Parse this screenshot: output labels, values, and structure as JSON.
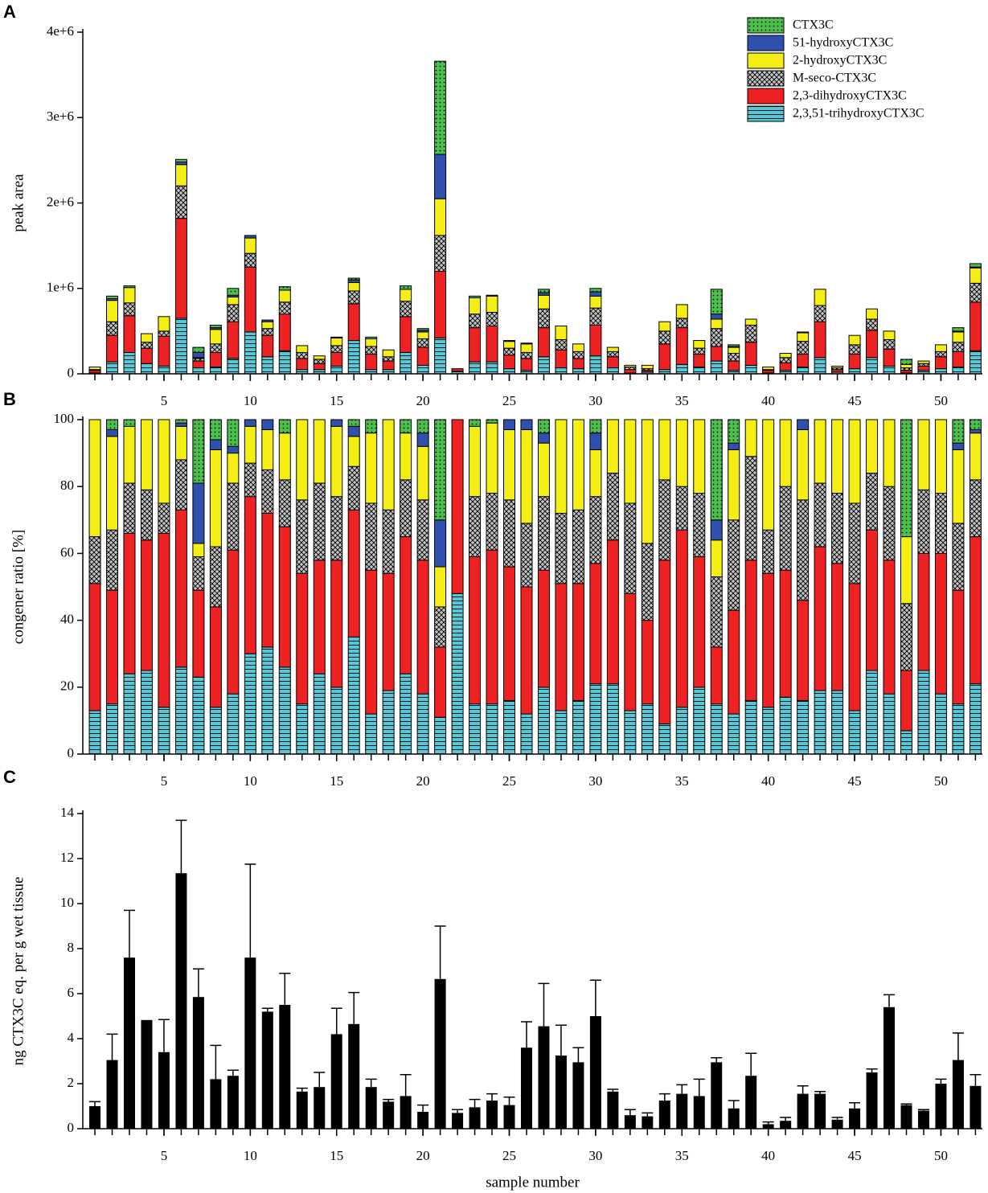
{
  "chart_data": [
    {
      "type": "bar",
      "stacked": true,
      "panel": "A",
      "ylabel": "peak area",
      "legend": "upper right",
      "x": [
        1,
        2,
        3,
        4,
        5,
        6,
        7,
        8,
        9,
        10,
        11,
        12,
        13,
        14,
        15,
        16,
        17,
        18,
        19,
        20,
        21,
        22,
        23,
        24,
        25,
        26,
        27,
        28,
        29,
        30,
        31,
        32,
        33,
        34,
        35,
        36,
        37,
        38,
        39,
        40,
        41,
        42,
        43,
        44,
        45,
        46,
        47,
        48,
        49,
        50,
        51,
        52
      ],
      "xlim": [
        0.3,
        52.4
      ],
      "xticks": [
        5,
        10,
        15,
        20,
        25,
        30,
        35,
        40,
        45,
        50
      ],
      "ylim": [
        0,
        4000000
      ],
      "yticks": [
        0,
        {
          "value": 1000000,
          "label": "1e+6"
        },
        {
          "value": 2000000,
          "label": "2e+6"
        },
        {
          "value": 3000000,
          "label": "3e+6"
        },
        {
          "value": 4000000,
          "label": "4e+6"
        }
      ],
      "series": [
        {
          "name": "2,3,51-trihydroxyCTX3C",
          "color": "#55c8d8",
          "pattern": "hlines",
          "values": [
            10000,
            140000,
            250000,
            120000,
            90000,
            650000,
            70000,
            80000,
            180000,
            490000,
            200000,
            270000,
            50000,
            50000,
            90000,
            390000,
            50000,
            50000,
            250000,
            100000,
            420000,
            30000,
            140000,
            140000,
            60000,
            40000,
            200000,
            70000,
            60000,
            210000,
            70000,
            10000,
            20000,
            50000,
            110000,
            80000,
            150000,
            40000,
            100000,
            10000,
            40000,
            80000,
            190000,
            20000,
            60000,
            190000,
            90000,
            10000,
            40000,
            60000,
            80000,
            270000
          ]
        },
        {
          "name": "2,3-dihydroxyCTX3C",
          "color": "#ee2222",
          "values": [
            30000,
            310000,
            430000,
            180000,
            350000,
            1170000,
            80000,
            170000,
            430000,
            760000,
            250000,
            430000,
            130000,
            70000,
            160000,
            430000,
            180000,
            100000,
            420000,
            210000,
            780000,
            30000,
            400000,
            420000,
            160000,
            140000,
            340000,
            210000,
            120000,
            360000,
            130000,
            40000,
            20000,
            300000,
            430000,
            150000,
            170000,
            110000,
            270000,
            30000,
            90000,
            150000,
            420000,
            30000,
            170000,
            320000,
            200000,
            30000,
            50000,
            140000,
            180000,
            570000
          ]
        },
        {
          "name": "M-seco-CTX3C",
          "color": "#c4c4c4",
          "pattern": "crosshatch",
          "values": [
            10000,
            160000,
            150000,
            70000,
            60000,
            380000,
            30000,
            100000,
            200000,
            160000,
            80000,
            140000,
            70000,
            50000,
            80000,
            150000,
            90000,
            50000,
            180000,
            100000,
            420000,
            0,
            160000,
            160000,
            80000,
            70000,
            220000,
            120000,
            80000,
            200000,
            60000,
            30000,
            20000,
            150000,
            110000,
            70000,
            210000,
            90000,
            200000,
            10000,
            60000,
            150000,
            190000,
            20000,
            110000,
            130000,
            110000,
            30000,
            30000,
            60000,
            110000,
            220000
          ]
        },
        {
          "name": "2-hydroxyCTX3C",
          "color": "#f4ee14",
          "values": [
            30000,
            250000,
            180000,
            100000,
            170000,
            250000,
            10000,
            170000,
            90000,
            180000,
            80000,
            140000,
            80000,
            40000,
            90000,
            100000,
            90000,
            80000,
            140000,
            80000,
            430000,
            0,
            190000,
            190000,
            80000,
            100000,
            160000,
            160000,
            90000,
            140000,
            50000,
            20000,
            40000,
            110000,
            160000,
            90000,
            110000,
            70000,
            70000,
            30000,
            50000,
            100000,
            190000,
            20000,
            110000,
            120000,
            100000,
            40000,
            30000,
            80000,
            120000,
            180000
          ]
        },
        {
          "name": "51-hydroxyCTX3C",
          "color": "#3050b0",
          "values": [
            0,
            20000,
            0,
            0,
            0,
            30000,
            60000,
            20000,
            20000,
            30000,
            20000,
            0,
            0,
            0,
            10000,
            30000,
            0,
            0,
            0,
            20000,
            520000,
            0,
            0,
            0,
            10000,
            10000,
            30000,
            0,
            0,
            50000,
            0,
            0,
            0,
            0,
            0,
            0,
            60000,
            10000,
            0,
            0,
            0,
            10000,
            0,
            0,
            0,
            0,
            0,
            0,
            0,
            0,
            10000,
            10000
          ]
        },
        {
          "name": "CTX3C",
          "color": "#4cc04c",
          "pattern": "dots",
          "values": [
            0,
            30000,
            20000,
            0,
            0,
            30000,
            60000,
            30000,
            80000,
            0,
            0,
            40000,
            0,
            0,
            0,
            20000,
            20000,
            0,
            40000,
            20000,
            1090000,
            0,
            20000,
            10000,
            0,
            0,
            40000,
            0,
            0,
            40000,
            0,
            0,
            0,
            0,
            0,
            0,
            290000,
            20000,
            0,
            0,
            0,
            0,
            0,
            0,
            0,
            0,
            0,
            60000,
            0,
            0,
            40000,
            40000
          ]
        }
      ]
    },
    {
      "type": "bar",
      "stacked": true,
      "panel": "B",
      "ylabel": "congener ratio [%]",
      "x": [
        1,
        2,
        3,
        4,
        5,
        6,
        7,
        8,
        9,
        10,
        11,
        12,
        13,
        14,
        15,
        16,
        17,
        18,
        19,
        20,
        21,
        22,
        23,
        24,
        25,
        26,
        27,
        28,
        29,
        30,
        31,
        32,
        33,
        34,
        35,
        36,
        37,
        38,
        39,
        40,
        41,
        42,
        43,
        44,
        45,
        46,
        47,
        48,
        49,
        50,
        51,
        52
      ],
      "xlim": [
        0.3,
        52.4
      ],
      "xticks": [
        5,
        10,
        15,
        20,
        25,
        30,
        35,
        40,
        45,
        50
      ],
      "ylim": [
        0,
        100
      ],
      "yticks": [
        0,
        20,
        40,
        60,
        80,
        100
      ],
      "series": [
        {
          "name": "2,3,51-trihydroxyCTX3C",
          "color": "#55c8d8",
          "pattern": "hlines",
          "values": [
            13,
            15,
            24,
            25,
            14,
            26,
            23,
            14,
            18,
            30,
            32,
            26,
            15,
            24,
            20,
            35,
            12,
            19,
            24,
            18,
            11,
            48,
            15,
            15,
            16,
            12,
            20,
            13,
            16,
            21,
            21,
            13,
            15,
            9,
            14,
            20,
            15,
            12,
            16,
            14,
            17,
            16,
            19,
            19,
            13,
            25,
            18,
            7,
            25,
            18,
            15,
            21
          ]
        },
        {
          "name": "2,3-dihydroxyCTX3C",
          "color": "#ee2222",
          "values": [
            38,
            34,
            42,
            39,
            52,
            47,
            26,
            30,
            43,
            47,
            40,
            42,
            39,
            34,
            38,
            38,
            43,
            35,
            41,
            40,
            21,
            52,
            44,
            46,
            40,
            38,
            35,
            38,
            35,
            36,
            43,
            35,
            25,
            49,
            53,
            39,
            17,
            31,
            42,
            40,
            38,
            30,
            43,
            38,
            38,
            42,
            40,
            18,
            35,
            42,
            34,
            44
          ]
        },
        {
          "name": "M-seco-CTX3C",
          "color": "#c4c4c4",
          "pattern": "crosshatch",
          "values": [
            14,
            18,
            15,
            15,
            9,
            15,
            10,
            18,
            20,
            10,
            13,
            14,
            22,
            23,
            19,
            13,
            20,
            19,
            17,
            18,
            12,
            0,
            18,
            17,
            20,
            19,
            22,
            21,
            22,
            20,
            20,
            27,
            23,
            24,
            13,
            19,
            21,
            27,
            31,
            13,
            25,
            30,
            19,
            21,
            24,
            17,
            22,
            20,
            19,
            18,
            20,
            17
          ]
        },
        {
          "name": "2-hydroxyCTX3C",
          "color": "#f4ee14",
          "values": [
            35,
            28,
            17,
            21,
            25,
            10,
            4,
            29,
            9,
            11,
            12,
            14,
            24,
            19,
            21,
            9,
            21,
            27,
            14,
            16,
            12,
            0,
            21,
            21,
            21,
            28,
            16,
            28,
            27,
            14,
            16,
            25,
            37,
            18,
            20,
            22,
            11,
            21,
            11,
            33,
            20,
            21,
            19,
            22,
            25,
            16,
            20,
            20,
            21,
            22,
            22,
            14
          ]
        },
        {
          "name": "51-hydroxyCTX3C",
          "color": "#3050b0",
          "values": [
            0,
            2,
            0,
            0,
            0,
            1,
            18,
            3,
            2,
            2,
            3,
            0,
            0,
            0,
            2,
            3,
            0,
            0,
            0,
            4,
            14,
            0,
            0,
            0,
            3,
            3,
            3,
            0,
            0,
            5,
            0,
            0,
            0,
            0,
            0,
            0,
            6,
            2,
            0,
            0,
            0,
            3,
            0,
            0,
            0,
            0,
            0,
            0,
            0,
            0,
            2,
            1
          ]
        },
        {
          "name": "CTX3C",
          "color": "#4cc04c",
          "pattern": "dots",
          "values": [
            0,
            3,
            2,
            0,
            0,
            1,
            19,
            6,
            8,
            0,
            0,
            4,
            0,
            0,
            0,
            2,
            4,
            0,
            4,
            4,
            30,
            0,
            2,
            1,
            0,
            0,
            4,
            0,
            0,
            4,
            0,
            0,
            0,
            0,
            0,
            0,
            30,
            7,
            0,
            0,
            0,
            0,
            0,
            0,
            0,
            0,
            0,
            35,
            0,
            0,
            7,
            3
          ]
        }
      ]
    },
    {
      "type": "bar",
      "panel": "C",
      "ylabel": "ng CTX3C eq. per g wet tissue",
      "xlabel": "sample number",
      "color": "#000000",
      "x": [
        1,
        2,
        3,
        4,
        5,
        6,
        7,
        8,
        9,
        10,
        11,
        12,
        13,
        14,
        15,
        16,
        17,
        18,
        19,
        20,
        21,
        22,
        23,
        24,
        25,
        26,
        27,
        28,
        29,
        30,
        31,
        32,
        33,
        34,
        35,
        36,
        37,
        38,
        39,
        40,
        41,
        42,
        43,
        44,
        45,
        46,
        47,
        48,
        49,
        50,
        51,
        52
      ],
      "xlim": [
        0.3,
        52.4
      ],
      "xticks": [
        5,
        10,
        15,
        20,
        25,
        30,
        35,
        40,
        45,
        50
      ],
      "ylim": [
        0,
        14
      ],
      "yticks": [
        0,
        2,
        4,
        6,
        8,
        10,
        12,
        14
      ],
      "values": [
        1.0,
        3.05,
        7.6,
        4.8,
        3.4,
        11.35,
        5.85,
        2.2,
        2.35,
        7.6,
        5.2,
        5.5,
        1.65,
        1.85,
        4.2,
        4.65,
        1.85,
        1.2,
        1.45,
        0.75,
        6.65,
        0.7,
        0.95,
        1.25,
        1.05,
        3.6,
        4.55,
        3.25,
        2.95,
        5.0,
        1.65,
        0.6,
        0.55,
        1.25,
        1.55,
        1.45,
        2.95,
        0.9,
        2.35,
        0.2,
        0.35,
        1.55,
        1.55,
        0.4,
        0.9,
        2.5,
        5.4,
        1.05,
        0.8,
        2.0,
        3.05,
        1.9
      ],
      "errors": [
        0.2,
        1.15,
        2.1,
        0,
        1.45,
        2.35,
        1.25,
        1.5,
        0.25,
        4.15,
        0.15,
        1.4,
        0.15,
        0.65,
        1.15,
        1.4,
        0.35,
        0.1,
        0.95,
        0.3,
        2.35,
        0.15,
        0.35,
        0.3,
        0.35,
        1.15,
        1.9,
        1.35,
        0.65,
        1.6,
        0.1,
        0.25,
        0.15,
        0.3,
        0.4,
        0.75,
        0.2,
        0.35,
        1.0,
        0.1,
        0.15,
        0.35,
        0.1,
        0.1,
        0.25,
        0.15,
        0.55,
        0.05,
        0.05,
        0.2,
        1.2,
        0.5
      ]
    }
  ]
}
